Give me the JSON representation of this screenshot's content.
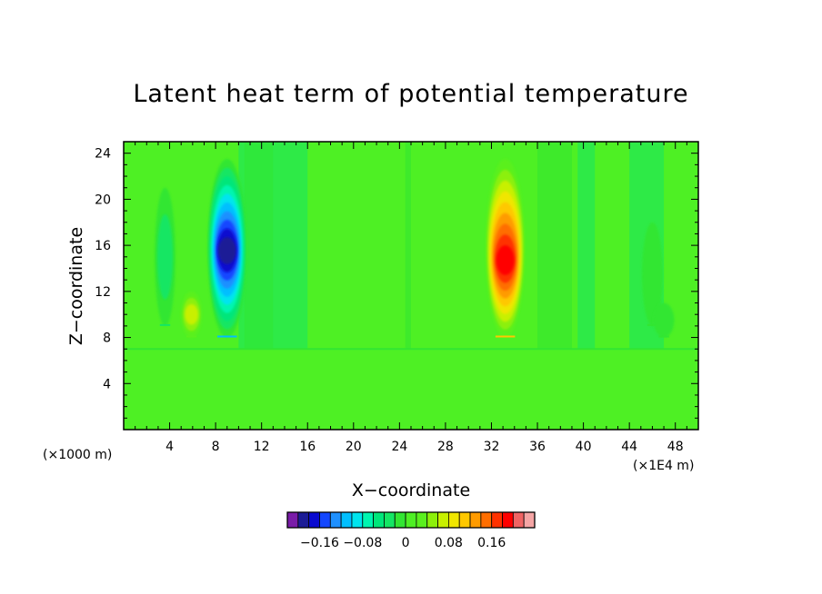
{
  "chart_data": {
    "type": "heatmap",
    "title": "Latent heat term of potential temperature",
    "xlabel": "X−coordinate",
    "ylabel": "Z−coordinate",
    "x_units": "(×1E4 m)",
    "y_units": "(×1000 m)",
    "xlim": [
      0,
      50
    ],
    "ylim": [
      0,
      25
    ],
    "x_ticks": [
      4,
      8,
      12,
      16,
      20,
      24,
      28,
      32,
      36,
      40,
      44,
      48
    ],
    "y_ticks": [
      4,
      8,
      12,
      16,
      20,
      24
    ],
    "features": [
      {
        "kind": "min",
        "x": 9.0,
        "z_bottom": 8.0,
        "z_top": 23.5,
        "peak_z": 15.5,
        "value": -0.2
      },
      {
        "kind": "max",
        "x": 33.2,
        "z_bottom": 8.0,
        "z_top": 23.5,
        "peak_z": 14.5,
        "value": 0.19
      },
      {
        "kind": "weak_neg",
        "x": 3.6,
        "z_bottom": 9.0,
        "z_top": 21.0,
        "value": -0.04
      },
      {
        "kind": "weak_pos",
        "x": 5.9,
        "z_bottom": 8.0,
        "z_top": 12.0,
        "value": 0.06
      },
      {
        "kind": "weak_neg",
        "x": 46.0,
        "z_bottom": 9.0,
        "z_top": 18.0,
        "value": -0.03
      },
      {
        "kind": "weak_neg",
        "x": 47.0,
        "z_bottom": 8.0,
        "z_top": 11.0,
        "value": -0.03
      }
    ],
    "lower_layer": {
      "z_top": 7.0,
      "value": 0.0
    },
    "colorbar": {
      "levels": [
        -0.22,
        -0.2,
        -0.18,
        -0.16,
        -0.14,
        -0.12,
        -0.1,
        -0.08,
        -0.06,
        -0.04,
        -0.02,
        0,
        0.02,
        0.04,
        0.06,
        0.08,
        0.1,
        0.12,
        0.14,
        0.16,
        0.18,
        0.2,
        0.22
      ],
      "colors": [
        "#7a1ca8",
        "#1c1c96",
        "#0a0ad0",
        "#1447ff",
        "#1e90ff",
        "#00bfff",
        "#00e5ee",
        "#00f5b0",
        "#00e67a",
        "#14e664",
        "#32e632",
        "#4ef024",
        "#5af01e",
        "#8cf00a",
        "#c8f000",
        "#f0e600",
        "#ffc800",
        "#ff9b00",
        "#ff6e00",
        "#ff3200",
        "#ff0000",
        "#f06464",
        "#f5a5a5"
      ],
      "tick_labels": [
        {
          "value": -0.16,
          "label": "−0.16"
        },
        {
          "value": -0.08,
          "label": "−0.08"
        },
        {
          "value": 0,
          "label": "0"
        },
        {
          "value": 0.08,
          "label": "0.08"
        },
        {
          "value": 0.16,
          "label": "0.16"
        }
      ]
    }
  }
}
